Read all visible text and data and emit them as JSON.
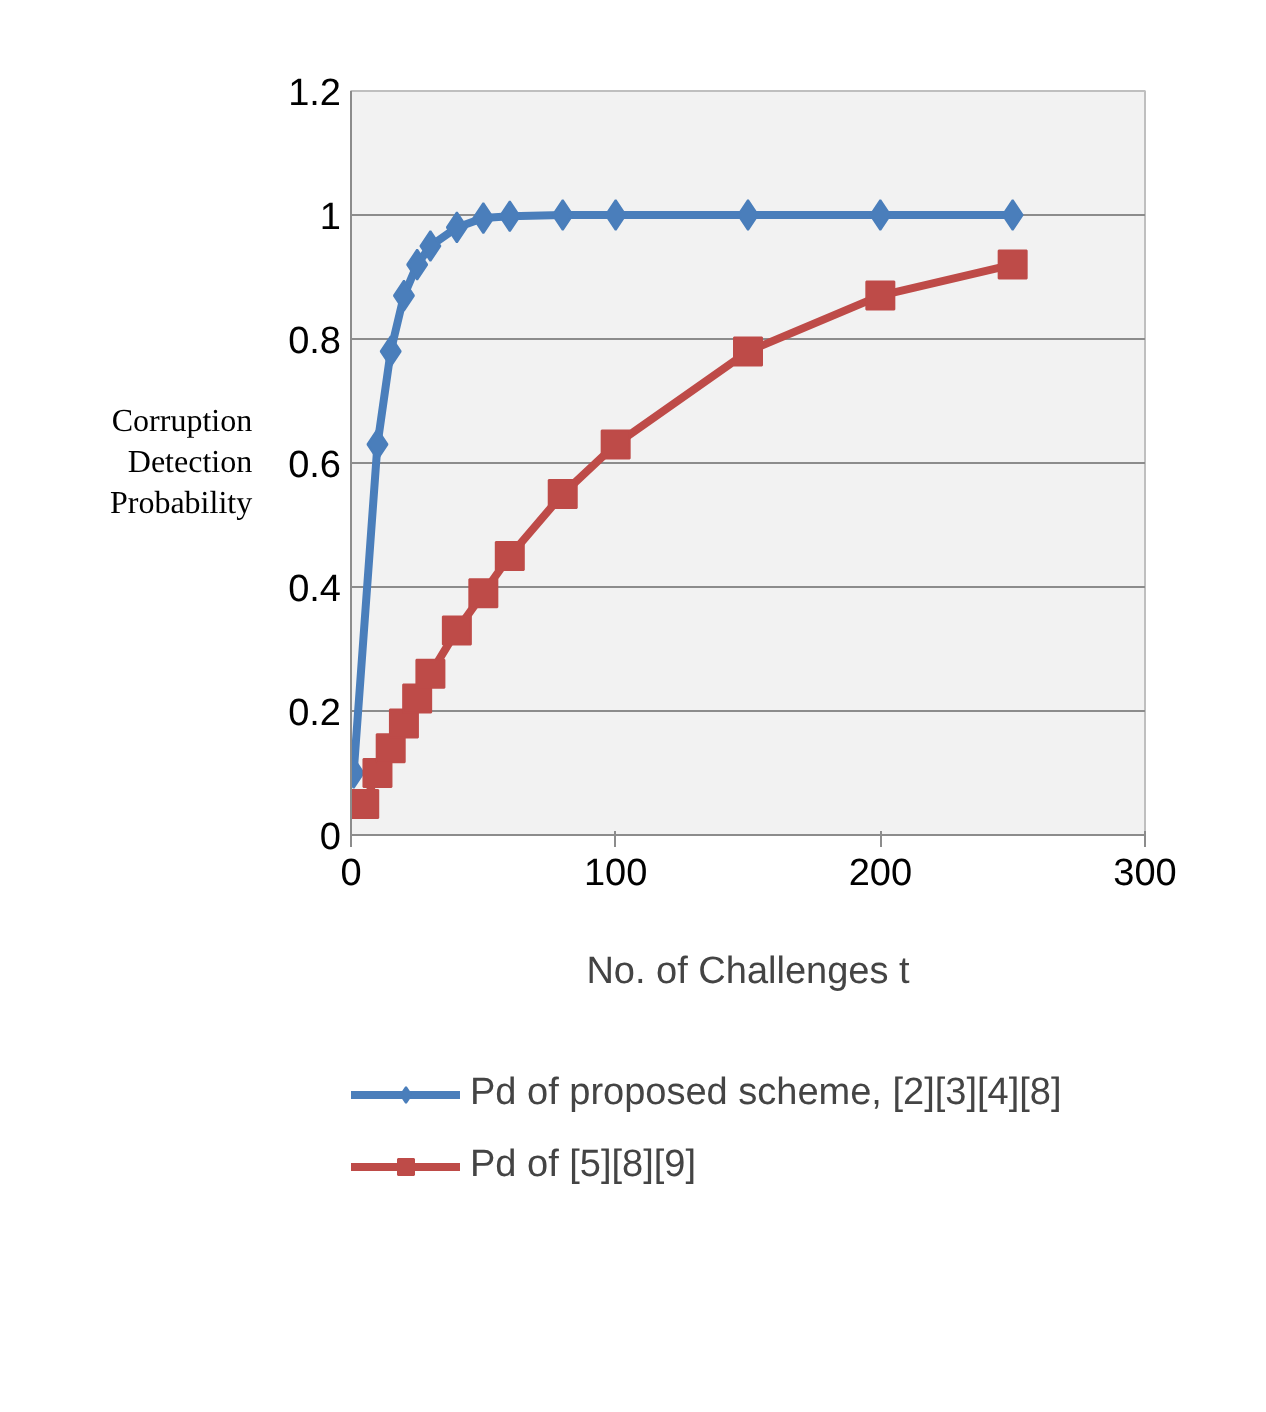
{
  "chart_data": {
    "type": "line",
    "xlabel": "No. of Challenges t",
    "ylabel": "Corruption Detection Probability",
    "series": [
      {
        "name": "Pd of proposed scheme, [2][3][4][8]",
        "color": "#4a7ebb",
        "marker": "diamond",
        "x": [
          1,
          10,
          15,
          20,
          25,
          30,
          40,
          50,
          60,
          80,
          100,
          150,
          200,
          250
        ],
        "values": [
          0.1,
          0.63,
          0.78,
          0.87,
          0.92,
          0.95,
          0.98,
          0.995,
          0.998,
          1,
          1,
          1,
          1,
          1
        ]
      },
      {
        "name": "Pd of [5][8][9]",
        "color": "#be4b48",
        "marker": "square",
        "x": [
          5,
          10,
          15,
          20,
          25,
          30,
          40,
          50,
          60,
          80,
          100,
          150,
          200,
          250
        ],
        "values": [
          0.05,
          0.1,
          0.14,
          0.18,
          0.22,
          0.26,
          0.33,
          0.39,
          0.45,
          0.55,
          0.63,
          0.78,
          0.87,
          0.92
        ]
      }
    ],
    "xlim": [
      0,
      300
    ],
    "xticks": [
      0,
      100,
      200,
      300
    ],
    "ylim": [
      0,
      1.2
    ],
    "yticks": [
      0,
      0.2,
      0.4,
      0.6,
      0.8,
      1,
      1.2
    ],
    "grid": "y",
    "legend": "bottom",
    "line_style": "solid"
  }
}
